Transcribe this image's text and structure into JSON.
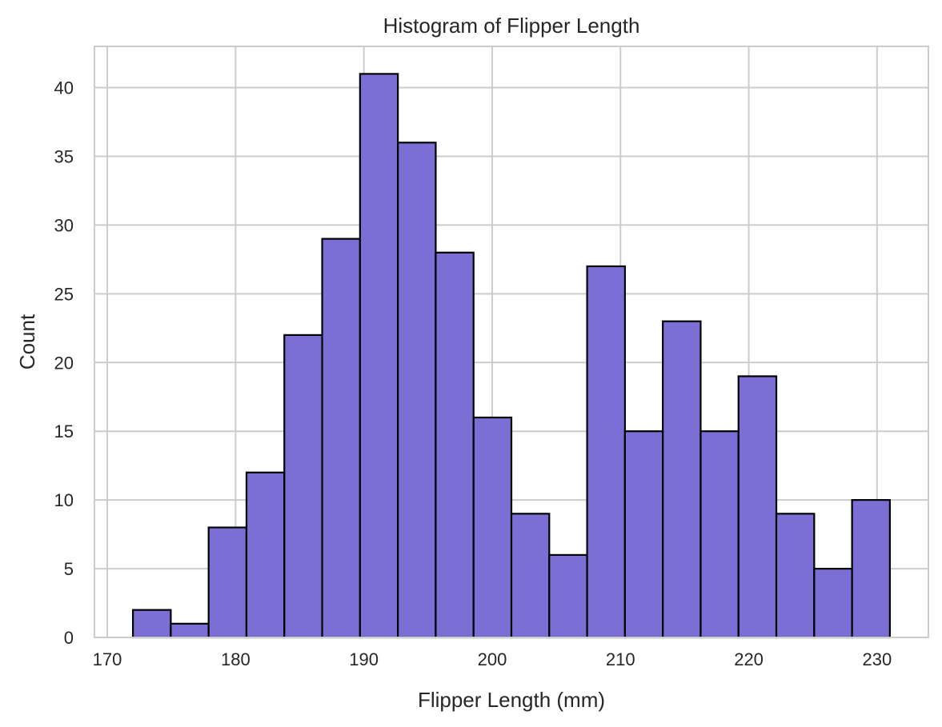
{
  "chart_data": {
    "type": "bar",
    "title": "Histogram of Flipper Length",
    "xlabel": "Flipper Length (mm)",
    "ylabel": "Count",
    "xlim": [
      169,
      234
    ],
    "ylim": [
      0,
      43
    ],
    "xticks": [
      170,
      180,
      190,
      200,
      210,
      220,
      230
    ],
    "yticks": [
      0,
      5,
      10,
      15,
      20,
      25,
      30,
      35,
      40
    ],
    "grid": true,
    "bar_color": "#7b6fd6",
    "edge_color": "#000000",
    "bins": [
      {
        "x0": 172.0,
        "x1": 174.95,
        "count": 2
      },
      {
        "x0": 174.95,
        "x1": 177.9,
        "count": 1
      },
      {
        "x0": 177.9,
        "x1": 180.85,
        "count": 8
      },
      {
        "x0": 180.85,
        "x1": 183.8,
        "count": 12
      },
      {
        "x0": 183.8,
        "x1": 186.75,
        "count": 22
      },
      {
        "x0": 186.75,
        "x1": 189.7,
        "count": 29
      },
      {
        "x0": 189.7,
        "x1": 192.65,
        "count": 41
      },
      {
        "x0": 192.65,
        "x1": 195.6,
        "count": 36
      },
      {
        "x0": 195.6,
        "x1": 198.55,
        "count": 28
      },
      {
        "x0": 198.55,
        "x1": 201.5,
        "count": 16
      },
      {
        "x0": 201.5,
        "x1": 204.45,
        "count": 9
      },
      {
        "x0": 204.45,
        "x1": 207.4,
        "count": 6
      },
      {
        "x0": 207.4,
        "x1": 210.35,
        "count": 27
      },
      {
        "x0": 210.35,
        "x1": 213.3,
        "count": 15
      },
      {
        "x0": 213.3,
        "x1": 216.25,
        "count": 23
      },
      {
        "x0": 216.25,
        "x1": 219.2,
        "count": 15
      },
      {
        "x0": 219.2,
        "x1": 222.15,
        "count": 19
      },
      {
        "x0": 222.15,
        "x1": 225.1,
        "count": 9
      },
      {
        "x0": 225.1,
        "x1": 228.05,
        "count": 5
      },
      {
        "x0": 228.05,
        "x1": 231.0,
        "count": 10
      }
    ]
  }
}
